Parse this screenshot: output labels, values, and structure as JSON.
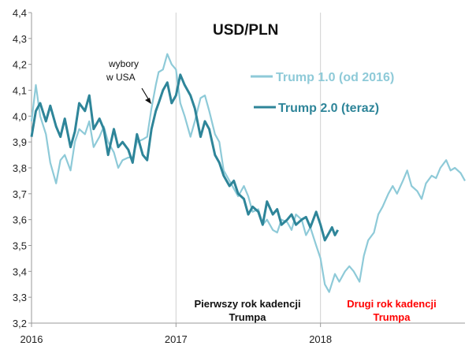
{
  "chart_data": {
    "type": "line",
    "title": "USD/PLN",
    "xlabel": "",
    "ylabel": "",
    "xlim": [
      2016,
      2019
    ],
    "ylim": [
      3.2,
      4.4
    ],
    "y_ticks": [
      "4,4",
      "4,3",
      "4,2",
      "4,1",
      "4,0",
      "3,9",
      "3,8",
      "3,7",
      "3,6",
      "3,5",
      "3,4",
      "3,3",
      "3,2"
    ],
    "x_ticks": [
      "2016",
      "2017",
      "2018"
    ],
    "grid": false,
    "legend_position": "top-right",
    "annotations": {
      "event_line1": "wybory",
      "event_line2": "w USA",
      "first_year_line1": "Pierwszy rok kadencji",
      "first_year_line2": "Trumpa",
      "second_year_line1": "Drugi rok kadencji",
      "second_year_line2": "Trumpa"
    },
    "colors": {
      "series1": "#8ecad8",
      "series2": "#2e8599",
      "vline": "#d0d0d0",
      "second_year": "#ff0000",
      "axis": "#999999"
    },
    "series": [
      {
        "name": "Trump 1.0 (od 2016)",
        "x": [
          2016.0,
          2016.03,
          2016.06,
          2016.1,
          2016.13,
          2016.17,
          2016.2,
          2016.23,
          2016.27,
          2016.3,
          2016.33,
          2016.37,
          2016.4,
          2016.43,
          2016.47,
          2016.5,
          2016.53,
          2016.57,
          2016.6,
          2016.63,
          2016.67,
          2016.7,
          2016.73,
          2016.77,
          2016.8,
          2016.83,
          2016.86,
          2016.88,
          2016.91,
          2016.94,
          2016.97,
          2017.0,
          2017.03,
          2017.06,
          2017.1,
          2017.13,
          2017.17,
          2017.2,
          2017.23,
          2017.27,
          2017.3,
          2017.33,
          2017.37,
          2017.4,
          2017.43,
          2017.47,
          2017.5,
          2017.53,
          2017.57,
          2017.6,
          2017.63,
          2017.67,
          2017.7,
          2017.73,
          2017.77,
          2017.8,
          2017.83,
          2017.87,
          2017.9,
          2017.93,
          2017.97,
          2018.0,
          2018.03,
          2018.06,
          2018.1,
          2018.13,
          2018.17,
          2018.2,
          2018.23,
          2018.27,
          2018.3,
          2018.33,
          2018.37,
          2018.4,
          2018.43,
          2018.47,
          2018.5,
          2018.53,
          2018.57,
          2018.6,
          2018.63,
          2018.67,
          2018.7,
          2018.73,
          2018.77,
          2018.8,
          2018.83,
          2018.87,
          2018.9,
          2018.93,
          2018.97,
          2019.0
        ],
        "values": [
          3.98,
          4.12,
          4.0,
          3.93,
          3.82,
          3.74,
          3.83,
          3.85,
          3.79,
          3.9,
          3.95,
          3.93,
          3.98,
          3.88,
          3.92,
          3.96,
          3.9,
          3.86,
          3.8,
          3.83,
          3.84,
          3.84,
          3.9,
          3.91,
          3.92,
          4.03,
          4.12,
          4.17,
          4.18,
          4.24,
          4.2,
          4.18,
          4.05,
          4.0,
          3.92,
          3.98,
          4.07,
          4.08,
          4.02,
          3.93,
          3.9,
          3.79,
          3.75,
          3.72,
          3.69,
          3.73,
          3.69,
          3.63,
          3.64,
          3.58,
          3.6,
          3.56,
          3.55,
          3.6,
          3.59,
          3.56,
          3.62,
          3.6,
          3.54,
          3.57,
          3.5,
          3.45,
          3.35,
          3.32,
          3.39,
          3.36,
          3.4,
          3.42,
          3.4,
          3.36,
          3.46,
          3.52,
          3.55,
          3.62,
          3.65,
          3.7,
          3.73,
          3.7,
          3.75,
          3.79,
          3.73,
          3.71,
          3.68,
          3.74,
          3.77,
          3.76,
          3.8,
          3.83,
          3.79,
          3.8,
          3.78,
          3.75
        ]
      },
      {
        "name": "Trump 2.0 (teraz)",
        "x": [
          2016.0,
          2016.03,
          2016.06,
          2016.1,
          2016.13,
          2016.17,
          2016.2,
          2016.23,
          2016.27,
          2016.3,
          2016.33,
          2016.37,
          2016.4,
          2016.43,
          2016.47,
          2016.5,
          2016.53,
          2016.57,
          2016.6,
          2016.63,
          2016.67,
          2016.7,
          2016.73,
          2016.77,
          2016.8,
          2016.83,
          2016.86,
          2016.88,
          2016.91,
          2016.94,
          2016.97,
          2017.0,
          2017.03,
          2017.06,
          2017.1,
          2017.13,
          2017.17,
          2017.2,
          2017.23,
          2017.27,
          2017.3,
          2017.33,
          2017.37,
          2017.4,
          2017.43,
          2017.47,
          2017.5,
          2017.53,
          2017.57,
          2017.6,
          2017.63,
          2017.67,
          2017.7,
          2017.73,
          2017.77,
          2017.8,
          2017.83,
          2017.87,
          2017.9,
          2017.93,
          2017.97,
          2018.0,
          2018.03,
          2018.06,
          2018.08,
          2018.1,
          2018.12
        ],
        "values": [
          3.92,
          4.02,
          4.05,
          3.98,
          4.04,
          3.96,
          3.92,
          3.99,
          3.88,
          3.94,
          4.05,
          4.02,
          4.08,
          3.95,
          3.99,
          3.95,
          3.85,
          3.95,
          3.88,
          3.9,
          3.87,
          3.82,
          3.93,
          3.85,
          3.83,
          3.95,
          4.02,
          4.05,
          4.1,
          4.13,
          4.05,
          4.08,
          4.16,
          4.12,
          4.08,
          4.03,
          3.92,
          3.98,
          3.95,
          3.85,
          3.82,
          3.77,
          3.73,
          3.75,
          3.7,
          3.68,
          3.62,
          3.65,
          3.63,
          3.58,
          3.67,
          3.62,
          3.64,
          3.58,
          3.6,
          3.62,
          3.58,
          3.6,
          3.61,
          3.57,
          3.63,
          3.58,
          3.52,
          3.55,
          3.57,
          3.54,
          3.56
        ]
      }
    ]
  }
}
